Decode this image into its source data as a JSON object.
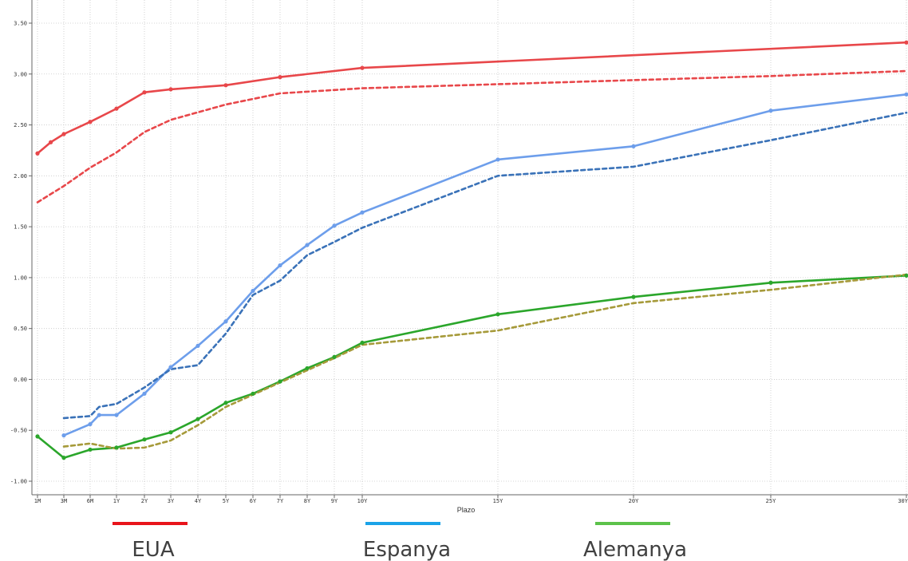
{
  "chart_data": {
    "type": "line",
    "xlabel": "Plazo",
    "ylabel": "",
    "ylim": [
      -1.0,
      3.5
    ],
    "grid": true,
    "legend_position": "bottom",
    "x_ticks": [
      {
        "x": 0.083,
        "label": "1M"
      },
      {
        "x": 0.25,
        "label": "3M"
      },
      {
        "x": 0.5,
        "label": "6M"
      },
      {
        "x": 1,
        "label": "1Y"
      },
      {
        "x": 2,
        "label": "2Y"
      },
      {
        "x": 3,
        "label": "3Y"
      },
      {
        "x": 4,
        "label": "4Y"
      },
      {
        "x": 5,
        "label": "5Y"
      },
      {
        "x": 6,
        "label": "6Y"
      },
      {
        "x": 7,
        "label": "7Y"
      },
      {
        "x": 8,
        "label": "8Y"
      },
      {
        "x": 9,
        "label": "9Y"
      },
      {
        "x": 10,
        "label": "10Y"
      },
      {
        "x": 15,
        "label": "15Y"
      },
      {
        "x": 20,
        "label": "20Y"
      },
      {
        "x": 25,
        "label": "25Y"
      },
      {
        "x": 30,
        "label": "30Y"
      }
    ],
    "y_ticks": [
      {
        "y": -1.0,
        "label": "-1.00"
      },
      {
        "y": -0.5,
        "label": "-0.50"
      },
      {
        "y": 0.0,
        "label": "0.00"
      },
      {
        "y": 0.5,
        "label": "0.50"
      },
      {
        "y": 1.0,
        "label": "1.00"
      },
      {
        "y": 1.5,
        "label": "1.50"
      },
      {
        "y": 2.0,
        "label": "2.00"
      },
      {
        "y": 2.5,
        "label": "2.50"
      },
      {
        "y": 3.0,
        "label": "3.00"
      },
      {
        "y": 3.5,
        "label": "3.50"
      }
    ],
    "series": [
      {
        "name": "EUA",
        "color": "#e8474a",
        "dashed": false,
        "markers": true,
        "points": [
          [
            0.083,
            2.22
          ],
          [
            0.167,
            2.33
          ],
          [
            0.25,
            2.41
          ],
          [
            0.5,
            2.53
          ],
          [
            1,
            2.66
          ],
          [
            2,
            2.82
          ],
          [
            3,
            2.85
          ],
          [
            5,
            2.89
          ],
          [
            7,
            2.97
          ],
          [
            10,
            3.06
          ],
          [
            30,
            3.31
          ]
        ]
      },
      {
        "name": "",
        "color": "#e8474a",
        "dashed": true,
        "markers": false,
        "points": [
          [
            0.083,
            1.74
          ],
          [
            0.25,
            1.9
          ],
          [
            0.5,
            2.08
          ],
          [
            1,
            2.23
          ],
          [
            2,
            2.43
          ],
          [
            3,
            2.55
          ],
          [
            5,
            2.7
          ],
          [
            7,
            2.81
          ],
          [
            10,
            2.86
          ],
          [
            15,
            2.9
          ],
          [
            20,
            2.94
          ],
          [
            25,
            2.98
          ],
          [
            30,
            3.03
          ]
        ]
      },
      {
        "name": "Espanya",
        "color": "#6d9eeb",
        "dashed": false,
        "markers": true,
        "points": [
          [
            0.25,
            -0.55
          ],
          [
            0.5,
            -0.44
          ],
          [
            0.67,
            -0.35
          ],
          [
            1,
            -0.35
          ],
          [
            2,
            -0.14
          ],
          [
            3,
            0.12
          ],
          [
            4,
            0.33
          ],
          [
            5,
            0.57
          ],
          [
            6,
            0.87
          ],
          [
            7,
            1.12
          ],
          [
            8,
            1.32
          ],
          [
            9,
            1.51
          ],
          [
            10,
            1.64
          ],
          [
            15,
            2.16
          ],
          [
            20,
            2.29
          ],
          [
            25,
            2.64
          ],
          [
            30,
            2.8
          ]
        ]
      },
      {
        "name": "",
        "color": "#3a72b8",
        "dashed": true,
        "markers": false,
        "points": [
          [
            0.25,
            -0.38
          ],
          [
            0.5,
            -0.36
          ],
          [
            0.67,
            -0.27
          ],
          [
            1,
            -0.24
          ],
          [
            2,
            -0.08
          ],
          [
            3,
            0.1
          ],
          [
            4,
            0.14
          ],
          [
            5,
            0.45
          ],
          [
            6,
            0.83
          ],
          [
            7,
            0.97
          ],
          [
            8,
            1.22
          ],
          [
            9,
            1.35
          ],
          [
            10,
            1.49
          ],
          [
            15,
            2.0
          ],
          [
            20,
            2.09
          ],
          [
            25,
            2.35
          ],
          [
            30,
            2.62
          ]
        ]
      },
      {
        "name": "Alemanya",
        "color": "#2ba62b",
        "dashed": false,
        "markers": true,
        "points": [
          [
            0.083,
            -0.56
          ],
          [
            0.25,
            -0.77
          ],
          [
            0.5,
            -0.69
          ],
          [
            1,
            -0.67
          ],
          [
            2,
            -0.59
          ],
          [
            3,
            -0.52
          ],
          [
            4,
            -0.39
          ],
          [
            5,
            -0.23
          ],
          [
            6,
            -0.14
          ],
          [
            7,
            -0.02
          ],
          [
            8,
            0.11
          ],
          [
            9,
            0.22
          ],
          [
            10,
            0.36
          ],
          [
            15,
            0.64
          ],
          [
            20,
            0.81
          ],
          [
            25,
            0.95
          ],
          [
            30,
            1.02
          ]
        ]
      },
      {
        "name": "",
        "color": "#a69a3a",
        "dashed": true,
        "markers": false,
        "points": [
          [
            0.25,
            -0.66
          ],
          [
            0.5,
            -0.63
          ],
          [
            1,
            -0.68
          ],
          [
            2,
            -0.67
          ],
          [
            3,
            -0.6
          ],
          [
            4,
            -0.45
          ],
          [
            5,
            -0.27
          ],
          [
            6,
            -0.15
          ],
          [
            7,
            -0.03
          ],
          [
            8,
            0.09
          ],
          [
            9,
            0.21
          ],
          [
            10,
            0.34
          ],
          [
            15,
            0.48
          ],
          [
            20,
            0.75
          ],
          [
            25,
            0.88
          ],
          [
            30,
            1.03
          ]
        ]
      }
    ]
  },
  "legend": [
    {
      "label": "EUA",
      "color": "#e8141b"
    },
    {
      "label": "Espanya",
      "color": "#1aa3e8"
    },
    {
      "label": "Alemanya",
      "color": "#5cc24a"
    }
  ]
}
